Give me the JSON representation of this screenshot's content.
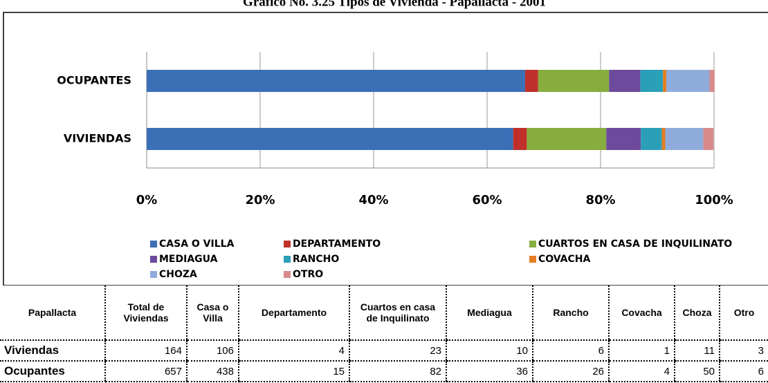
{
  "chart_data": {
    "type": "bar",
    "orientation": "horizontal",
    "stacking": "stacked",
    "title": "Gráfico No. 3.25 Tipos de Vivienda - Papallacta - 2001",
    "categories": [
      "OCUPANTES",
      "VIVIENDAS"
    ],
    "series": [
      {
        "name": "CASA O VILLA",
        "color": "#3b6fb6",
        "values": [
          66.7,
          64.6
        ]
      },
      {
        "name": "DEPARTAMENTO",
        "color": "#c0302b",
        "values": [
          2.3,
          2.4
        ]
      },
      {
        "name": "CUARTOS EN CASA DE INQUILINATO",
        "color": "#86ad3e",
        "values": [
          12.5,
          14.0
        ]
      },
      {
        "name": "MEDIAGUA",
        "color": "#6d4a9b",
        "values": [
          5.5,
          6.1
        ]
      },
      {
        "name": "RANCHO",
        "color": "#2b9fb8",
        "values": [
          4.0,
          3.7
        ]
      },
      {
        "name": "COVACHA",
        "color": "#e47d22",
        "values": [
          0.6,
          0.6
        ]
      },
      {
        "name": "CHOZA",
        "color": "#90acdc",
        "values": [
          7.6,
          6.7
        ]
      },
      {
        "name": "OTRO",
        "color": "#d98a8a",
        "values": [
          0.9,
          1.8
        ]
      }
    ],
    "xlim": [
      0,
      100
    ],
    "xticks": [
      {
        "value": 0,
        "label": "0%"
      },
      {
        "value": 20,
        "label": "20%"
      },
      {
        "value": 40,
        "label": "40%"
      },
      {
        "value": 60,
        "label": "60%"
      },
      {
        "value": 80,
        "label": "80%"
      },
      {
        "value": 100,
        "label": "100%"
      }
    ],
    "grid": true,
    "legend": "bottom"
  },
  "table": {
    "header": [
      "Papallacta",
      "Total de Viviendas",
      "Casa o Villa",
      "Departamento",
      "Cuartos en casa de Inquilinato",
      "Mediagua",
      "Rancho",
      "Covacha",
      "Choza",
      "Otro"
    ],
    "rows": [
      [
        "Viviendas",
        164,
        106,
        4,
        23,
        10,
        6,
        1,
        11,
        3
      ],
      [
        "Ocupantes",
        657,
        438,
        15,
        82,
        36,
        26,
        4,
        50,
        6
      ]
    ]
  }
}
